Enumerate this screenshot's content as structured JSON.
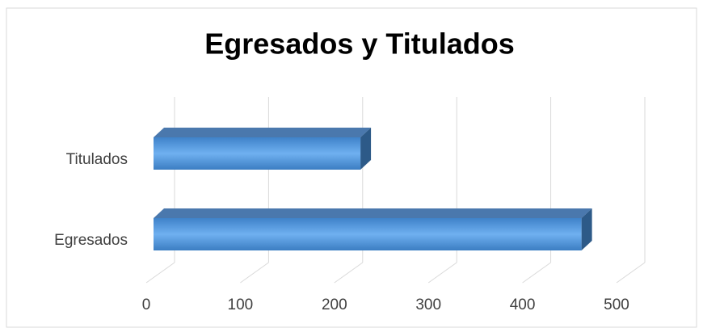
{
  "chart_data": {
    "type": "bar",
    "orientation": "horizontal",
    "title": "Egresados y Titulados",
    "categories": [
      "Titulados",
      "Egresados"
    ],
    "values": [
      220,
      455
    ],
    "color": "#5b9bd5",
    "xlim": [
      0,
      500
    ],
    "xticks": [
      0,
      100,
      200,
      300,
      400,
      500
    ],
    "grid": true
  }
}
